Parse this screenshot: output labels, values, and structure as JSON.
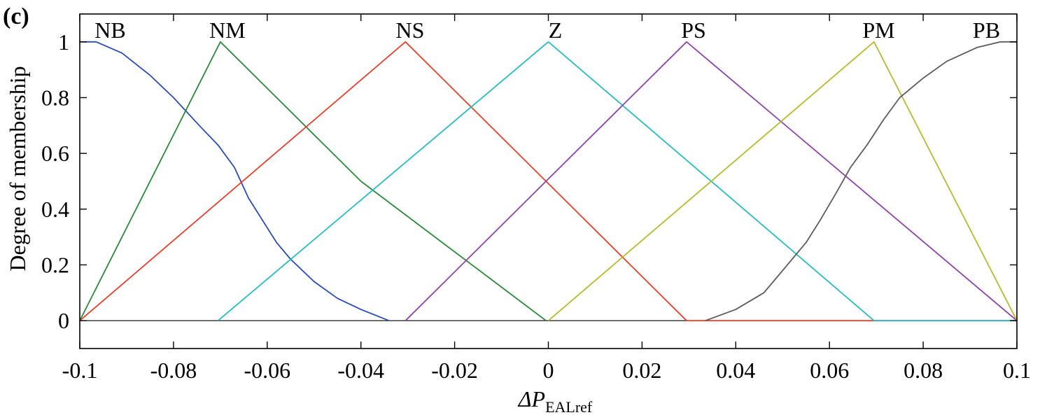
{
  "chart_data": {
    "type": "line",
    "panel_label": "(c)",
    "title": "",
    "xlabel": {
      "prefix": "ΔP",
      "subscript": "EALref"
    },
    "ylabel": "Degree of membership",
    "xlim": [
      -0.1,
      0.1
    ],
    "ylim": [
      -0.1,
      1.1
    ],
    "xticks": [
      -0.1,
      -0.08,
      -0.06,
      -0.04,
      -0.02,
      0,
      0.02,
      0.04,
      0.06,
      0.08,
      0.1
    ],
    "xtick_labels": [
      "-0.1",
      "-0.08",
      "-0.06",
      "-0.04",
      "-0.02",
      "0",
      "0.02",
      "0.04",
      "0.06",
      "0.08",
      "0.1"
    ],
    "yticks": [
      0,
      0.2,
      0.4,
      0.6,
      0.8,
      1
    ],
    "ytick_labels": [
      "0",
      "0.2",
      "0.4",
      "0.6",
      "0.8",
      "1"
    ],
    "grid": false,
    "series": [
      {
        "name": "NB",
        "color": "#2a4bb5",
        "label_x": -0.0935,
        "x": [
          -0.1,
          -0.0965,
          -0.091,
          -0.085,
          -0.08,
          -0.0745,
          -0.0705,
          -0.067,
          -0.064,
          -0.061,
          -0.058,
          -0.055,
          -0.05,
          -0.045,
          -0.04,
          -0.034
        ],
        "y": [
          1,
          1,
          0.96,
          0.88,
          0.8,
          0.7,
          0.63,
          0.55,
          0.44,
          0.36,
          0.28,
          0.22,
          0.14,
          0.08,
          0.04,
          0
        ]
      },
      {
        "name": "NM",
        "color": "#2a8a3a",
        "label_x": -0.0685,
        "x": [
          -0.1,
          -0.07,
          -0.04,
          -0.0005
        ],
        "y": [
          0,
          1,
          0.5,
          0
        ]
      },
      {
        "name": "NS",
        "color": "#e8412c",
        "label_x": -0.0295,
        "x": [
          -0.1,
          -0.0305,
          0.0295,
          0.1
        ],
        "y": [
          0,
          1,
          0,
          0
        ]
      },
      {
        "name": "Z",
        "color": "#27bcc4",
        "label_x": 0.0015,
        "x": [
          -0.0705,
          0,
          0.0695,
          0.1
        ],
        "y": [
          0,
          1,
          0,
          0
        ]
      },
      {
        "name": "PS",
        "color": "#8e44a8",
        "label_x": 0.031,
        "x": [
          -0.0305,
          0.0295,
          0.1
        ],
        "y": [
          0,
          1,
          0
        ]
      },
      {
        "name": "PM",
        "color": "#b5bb2d",
        "label_x": 0.0705,
        "x": [
          0,
          0.0695,
          0.1
        ],
        "y": [
          0,
          1,
          0
        ]
      },
      {
        "name": "PB",
        "color": "#5c5c5c",
        "label_x": 0.0935,
        "x": [
          0.0335,
          0.04,
          0.046,
          0.05,
          0.055,
          0.058,
          0.0615,
          0.0645,
          0.068,
          0.0715,
          0.075,
          0.08,
          0.085,
          0.0915,
          0.0965,
          0.1
        ],
        "y": [
          0,
          0.04,
          0.1,
          0.18,
          0.28,
          0.36,
          0.46,
          0.55,
          0.63,
          0.72,
          0.8,
          0.87,
          0.93,
          0.98,
          1,
          1
        ]
      }
    ]
  }
}
